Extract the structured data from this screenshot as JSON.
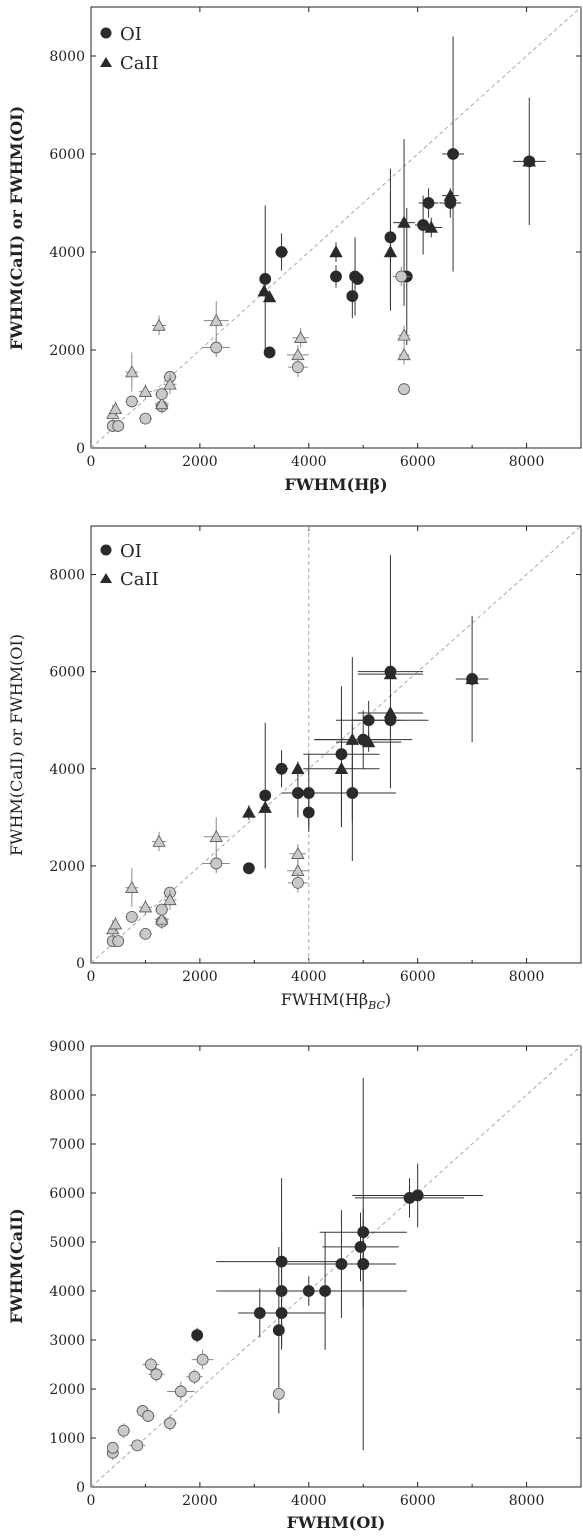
{
  "colors": {
    "dark": "#2a2a2a",
    "light": "#c9c9c9",
    "stroke": "#555555",
    "dashed": "#aaaaaa"
  },
  "chart_data": [
    {
      "type": "scatter",
      "id": "panel1",
      "xlabel": "FWHM(Hβ)",
      "ylabel": "FWHM(CaII) or FWHM(OI)",
      "xlim": [
        0,
        9000
      ],
      "ylim": [
        0,
        9000
      ],
      "xticks": [
        "0",
        "2000",
        "4000",
        "6000",
        "8000"
      ],
      "yticks": [
        "0",
        "2000",
        "4000",
        "6000",
        "8000"
      ],
      "legend": {
        "placement": "top-left",
        "entries": [
          {
            "label": "OI",
            "marker": "circle"
          },
          {
            "label": "CaII",
            "marker": "triangle"
          }
        ]
      },
      "reference_line": "x = y",
      "points": [
        [
          3200,
          3450,
          80,
          1500,
          "c",
          "d"
        ],
        [
          3180,
          3200,
          80,
          0,
          "t",
          "d"
        ],
        [
          3280,
          3080,
          60,
          0,
          "t",
          "d"
        ],
        [
          3280,
          1950,
          60,
          0,
          "c",
          "d"
        ],
        [
          3500,
          4000,
          120,
          380,
          "c",
          "d"
        ],
        [
          4500,
          3500,
          70,
          230,
          "c",
          "d"
        ],
        [
          4500,
          4000,
          60,
          200,
          "t",
          "d"
        ],
        [
          4800,
          3100,
          70,
          450,
          "c",
          "d"
        ],
        [
          4850,
          3500,
          80,
          800,
          "c",
          "d"
        ],
        [
          4900,
          3450,
          60,
          0,
          "c",
          "d"
        ],
        [
          5500,
          4300,
          70,
          1400,
          "c",
          "d"
        ],
        [
          5500,
          4000,
          60,
          1200,
          "t",
          "d"
        ],
        [
          5750,
          4600,
          200,
          1700,
          "t",
          "d"
        ],
        [
          5800,
          3500,
          100,
          1400,
          "c",
          "d"
        ],
        [
          6100,
          4550,
          150,
          600,
          "c",
          "d"
        ],
        [
          6200,
          5000,
          180,
          300,
          "c",
          "d"
        ],
        [
          6250,
          4500,
          200,
          200,
          "t",
          "d"
        ],
        [
          6600,
          5000,
          200,
          300,
          "c",
          "d"
        ],
        [
          6600,
          5150,
          150,
          0,
          "t",
          "d"
        ],
        [
          6650,
          6000,
          200,
          2400,
          "c",
          "d"
        ],
        [
          8050,
          5850,
          300,
          1300,
          "t",
          "d"
        ],
        [
          8050,
          5850,
          100,
          0,
          "c",
          "d"
        ],
        [
          400,
          450,
          80,
          120,
          "c",
          "l"
        ],
        [
          400,
          700,
          80,
          180,
          "t",
          "l"
        ],
        [
          450,
          800,
          60,
          150,
          "t",
          "l"
        ],
        [
          500,
          450,
          60,
          80,
          "c",
          "l"
        ],
        [
          750,
          1550,
          120,
          400,
          "t",
          "l"
        ],
        [
          750,
          950,
          120,
          100,
          "c",
          "l"
        ],
        [
          1000,
          600,
          120,
          80,
          "c",
          "l"
        ],
        [
          1000,
          1150,
          120,
          150,
          "t",
          "l"
        ],
        [
          1250,
          2500,
          130,
          200,
          "t",
          "l"
        ],
        [
          1300,
          850,
          120,
          150,
          "c",
          "l"
        ],
        [
          1300,
          900,
          130,
          150,
          "t",
          "l"
        ],
        [
          1300,
          1100,
          120,
          120,
          "c",
          "l"
        ],
        [
          1450,
          1450,
          120,
          80,
          "c",
          "l"
        ],
        [
          1450,
          1300,
          120,
          200,
          "t",
          "l"
        ],
        [
          2300,
          2600,
          230,
          400,
          "t",
          "l"
        ],
        [
          2300,
          2050,
          250,
          200,
          "c",
          "l"
        ],
        [
          3800,
          1900,
          200,
          200,
          "t",
          "l"
        ],
        [
          3800,
          1650,
          180,
          200,
          "c",
          "l"
        ],
        [
          3850,
          2250,
          150,
          200,
          "t",
          "l"
        ],
        [
          5700,
          3500,
          150,
          200,
          "c",
          "l"
        ],
        [
          5750,
          1900,
          100,
          200,
          "t",
          "l"
        ],
        [
          5750,
          2300,
          100,
          200,
          "t",
          "l"
        ],
        [
          5750,
          1200,
          100,
          120,
          "c",
          "l"
        ]
      ]
    },
    {
      "type": "scatter",
      "id": "panel2",
      "xlabel": "FWHM(Hβ",
      "xlabel_sub": "BC",
      "xlabel_close": ")",
      "ylabel": "FWHM(CaII) or FWHM(OI)",
      "xlim": [
        0,
        9000
      ],
      "ylim": [
        0,
        9000
      ],
      "xticks": [
        "0",
        "2000",
        "4000",
        "6000",
        "8000"
      ],
      "yticks": [
        "0",
        "2000",
        "4000",
        "6000",
        "8000"
      ],
      "legend": {
        "placement": "top-left",
        "entries": [
          {
            "label": "OI",
            "marker": "circle"
          },
          {
            "label": "CaII",
            "marker": "triangle"
          }
        ]
      },
      "reference_line": "x = y",
      "vertical_line": 4000,
      "points": [
        [
          2900,
          1950,
          60,
          0,
          "c",
          "d"
        ],
        [
          2900,
          3100,
          60,
          150,
          "t",
          "d"
        ],
        [
          3200,
          3450,
          80,
          1500,
          "c",
          "d"
        ],
        [
          3200,
          3200,
          80,
          0,
          "t",
          "d"
        ],
        [
          3500,
          4000,
          120,
          380,
          "c",
          "d"
        ],
        [
          3800,
          4000,
          60,
          150,
          "t",
          "d"
        ],
        [
          3800,
          3500,
          300,
          500,
          "c",
          "d"
        ],
        [
          4000,
          3500,
          500,
          800,
          "c",
          "d"
        ],
        [
          4000,
          3100,
          60,
          300,
          "c",
          "d"
        ],
        [
          4600,
          4300,
          700,
          1400,
          "c",
          "d"
        ],
        [
          4600,
          4000,
          700,
          1200,
          "t",
          "d"
        ],
        [
          4800,
          3500,
          800,
          1400,
          "c",
          "d"
        ],
        [
          4800,
          4600,
          700,
          1700,
          "t",
          "d"
        ],
        [
          5000,
          4600,
          900,
          600,
          "c",
          "d"
        ],
        [
          5100,
          5000,
          600,
          400,
          "c",
          "d"
        ],
        [
          5100,
          4550,
          600,
          200,
          "t",
          "d"
        ],
        [
          5500,
          5000,
          700,
          300,
          "c",
          "d"
        ],
        [
          5500,
          5150,
          600,
          0,
          "t",
          "d"
        ],
        [
          5500,
          6000,
          600,
          2400,
          "c",
          "d"
        ],
        [
          5500,
          5950,
          600,
          0,
          "t",
          "d"
        ],
        [
          7000,
          5850,
          300,
          1300,
          "t",
          "d"
        ],
        [
          7000,
          5850,
          100,
          0,
          "c",
          "d"
        ],
        [
          400,
          450,
          80,
          120,
          "c",
          "l"
        ],
        [
          400,
          700,
          80,
          180,
          "t",
          "l"
        ],
        [
          450,
          800,
          60,
          150,
          "t",
          "l"
        ],
        [
          500,
          450,
          60,
          80,
          "c",
          "l"
        ],
        [
          750,
          1550,
          120,
          400,
          "t",
          "l"
        ],
        [
          750,
          950,
          120,
          100,
          "c",
          "l"
        ],
        [
          1000,
          600,
          120,
          80,
          "c",
          "l"
        ],
        [
          1000,
          1150,
          120,
          150,
          "t",
          "l"
        ],
        [
          1250,
          2500,
          130,
          200,
          "t",
          "l"
        ],
        [
          1300,
          850,
          120,
          150,
          "c",
          "l"
        ],
        [
          1300,
          900,
          130,
          150,
          "t",
          "l"
        ],
        [
          1300,
          1100,
          120,
          120,
          "c",
          "l"
        ],
        [
          1450,
          1450,
          120,
          80,
          "c",
          "l"
        ],
        [
          1450,
          1300,
          120,
          200,
          "t",
          "l"
        ],
        [
          2300,
          2600,
          230,
          400,
          "t",
          "l"
        ],
        [
          2300,
          2050,
          250,
          200,
          "c",
          "l"
        ],
        [
          3800,
          1900,
          200,
          200,
          "t",
          "l"
        ],
        [
          3800,
          1650,
          180,
          200,
          "c",
          "l"
        ],
        [
          3800,
          2250,
          150,
          200,
          "t",
          "l"
        ]
      ]
    },
    {
      "type": "scatter",
      "id": "panel3",
      "xlabel": "FWHM(OI)",
      "ylabel": "FWHM(CaII)",
      "xlim": [
        0,
        9000
      ],
      "ylim": [
        0,
        9000
      ],
      "xticks": [
        "0",
        "2000",
        "4000",
        "6000",
        "8000"
      ],
      "yticks": [
        "0",
        "1000",
        "2000",
        "3000",
        "4000",
        "5000",
        "6000",
        "7000",
        "8000",
        "9000"
      ],
      "reference_line": "x = y",
      "points": [
        [
          1950,
          3100,
          100,
          150,
          "c",
          "d"
        ],
        [
          3100,
          3550,
          400,
          500,
          "c",
          "d"
        ],
        [
          3450,
          3200,
          100,
          1700,
          "c",
          "d"
        ],
        [
          3500,
          3550,
          800,
          700,
          "c",
          "d"
        ],
        [
          3500,
          4000,
          1200,
          1200,
          "c",
          "d"
        ],
        [
          3500,
          4600,
          1200,
          1700,
          "c",
          "d"
        ],
        [
          4000,
          4000,
          100,
          300,
          "c",
          "d"
        ],
        [
          4300,
          4000,
          1500,
          1200,
          "c",
          "d"
        ],
        [
          4600,
          4550,
          1000,
          1100,
          "c",
          "d"
        ],
        [
          4950,
          4900,
          700,
          700,
          "c",
          "d"
        ],
        [
          5000,
          5200,
          800,
          500,
          "c",
          "d"
        ],
        [
          5000,
          4550,
          600,
          900,
          "c",
          "d"
        ],
        [
          5000,
          4550,
          600,
          3800,
          "c",
          "d"
        ],
        [
          5850,
          5900,
          1000,
          400,
          "c",
          "d"
        ],
        [
          6000,
          5950,
          1200,
          650,
          "c",
          "d"
        ],
        [
          400,
          700,
          80,
          150,
          "c",
          "l"
        ],
        [
          400,
          800,
          80,
          100,
          "c",
          "l"
        ],
        [
          600,
          1150,
          120,
          150,
          "c",
          "l"
        ],
        [
          850,
          850,
          150,
          100,
          "c",
          "l"
        ],
        [
          950,
          1550,
          120,
          120,
          "c",
          "l"
        ],
        [
          1050,
          1450,
          120,
          120,
          "c",
          "l"
        ],
        [
          1100,
          2500,
          150,
          150,
          "c",
          "l"
        ],
        [
          1200,
          2300,
          150,
          150,
          "c",
          "l"
        ],
        [
          1450,
          1300,
          120,
          150,
          "c",
          "l"
        ],
        [
          1650,
          1950,
          250,
          200,
          "c",
          "l"
        ],
        [
          1900,
          2250,
          150,
          150,
          "c",
          "l"
        ],
        [
          2050,
          2600,
          200,
          200,
          "c",
          "l"
        ],
        [
          3450,
          1900,
          100,
          150,
          "c",
          "l"
        ]
      ]
    }
  ]
}
